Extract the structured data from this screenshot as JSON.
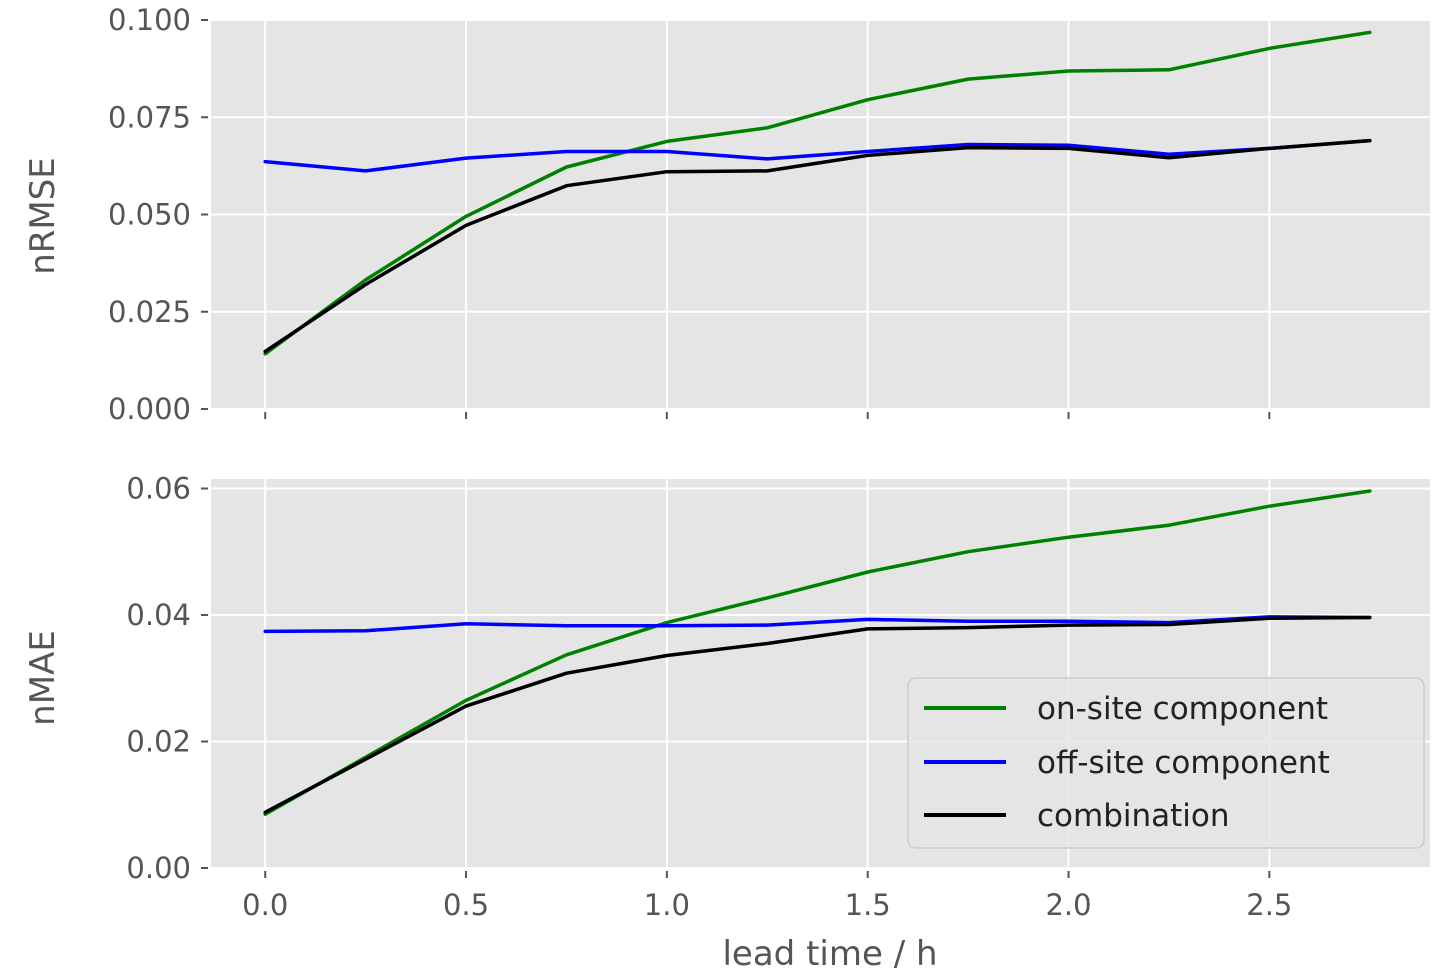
{
  "chart_data": [
    {
      "type": "line",
      "ylabel": "nRMSE",
      "ylim": [
        0.0,
        0.1
      ],
      "yticks": [
        "0.000",
        "0.025",
        "0.050",
        "0.075",
        "0.100"
      ],
      "ytick_values": [
        0.0,
        0.025,
        0.05,
        0.075,
        0.1
      ],
      "xlim": [
        -0.135,
        2.9
      ],
      "x": [
        0.0,
        0.25,
        0.5,
        0.75,
        1.0,
        1.25,
        1.5,
        1.75,
        2.0,
        2.25,
        2.5,
        2.75
      ],
      "grid": true,
      "series": [
        {
          "name": "on-site component",
          "color": "#008000",
          "values": [
            0.0142,
            0.0332,
            0.0495,
            0.0622,
            0.0688,
            0.0723,
            0.0795,
            0.0848,
            0.0869,
            0.0872,
            0.0927,
            0.0968
          ]
        },
        {
          "name": "off-site component",
          "color": "#0000ff",
          "values": [
            0.0636,
            0.0612,
            0.0645,
            0.0662,
            0.0662,
            0.0643,
            0.0662,
            0.068,
            0.0678,
            0.0655,
            0.067,
            0.069
          ]
        },
        {
          "name": "combination",
          "color": "#000000",
          "values": [
            0.0148,
            0.032,
            0.0472,
            0.0574,
            0.061,
            0.0612,
            0.0652,
            0.0672,
            0.067,
            0.0646,
            0.067,
            0.069
          ]
        }
      ]
    },
    {
      "type": "line",
      "xlabel": "lead time / h",
      "ylabel": "nMAE",
      "ylim": [
        0.0,
        0.0615
      ],
      "yticks": [
        "0.00",
        "0.02",
        "0.04",
        "0.06"
      ],
      "ytick_values": [
        0.0,
        0.02,
        0.04,
        0.06
      ],
      "xlim": [
        -0.135,
        2.9
      ],
      "x": [
        0.0,
        0.25,
        0.5,
        0.75,
        1.0,
        1.25,
        1.5,
        1.75,
        2.0,
        2.25,
        2.5,
        2.75
      ],
      "xticks": [
        "0.0",
        "0.5",
        "1.0",
        "1.5",
        "2.0",
        "2.5"
      ],
      "xtick_values": [
        0.0,
        0.5,
        1.0,
        1.5,
        2.0,
        2.5
      ],
      "grid": true,
      "legend_position": "lower-right",
      "series": [
        {
          "name": "on-site component",
          "color": "#008000",
          "values": [
            0.0085,
            0.0175,
            0.0265,
            0.0337,
            0.0388,
            0.0427,
            0.0468,
            0.05,
            0.0523,
            0.0542,
            0.0572,
            0.0596
          ]
        },
        {
          "name": "off-site component",
          "color": "#0000ff",
          "values": [
            0.0374,
            0.0375,
            0.0386,
            0.0383,
            0.0383,
            0.0384,
            0.0393,
            0.039,
            0.039,
            0.0388,
            0.0397,
            0.0396
          ]
        },
        {
          "name": "combination",
          "color": "#000000",
          "values": [
            0.0088,
            0.0172,
            0.0256,
            0.0308,
            0.0336,
            0.0355,
            0.0378,
            0.038,
            0.0384,
            0.0385,
            0.0395,
            0.0396
          ]
        }
      ]
    }
  ],
  "legend": {
    "items": [
      {
        "label": "on-site component",
        "color": "#008000"
      },
      {
        "label": "off-site component",
        "color": "#0000ff"
      },
      {
        "label": "combination",
        "color": "#000000"
      }
    ]
  }
}
